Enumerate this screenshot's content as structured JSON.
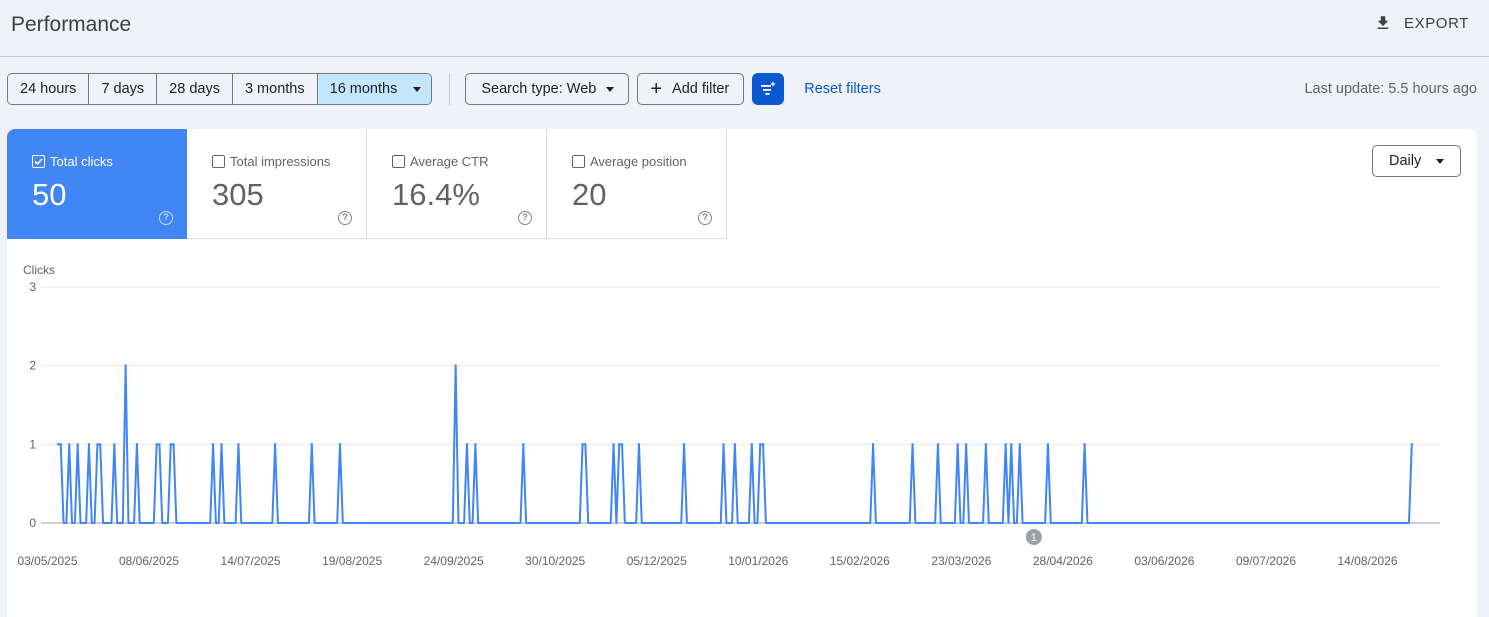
{
  "header": {
    "title": "Performance",
    "export_label": "EXPORT"
  },
  "filters": {
    "ranges": [
      "24 hours",
      "7 days",
      "28 days",
      "3 months",
      "16 months"
    ],
    "selected_range": "16 months",
    "search_type": "Search type: Web",
    "add_filter": "Add filter",
    "reset": "Reset filters",
    "last_update": "Last update: 5.5 hours ago"
  },
  "metrics": [
    {
      "label": "Total clicks",
      "value": "50",
      "checked": true
    },
    {
      "label": "Total impressions",
      "value": "305",
      "checked": false
    },
    {
      "label": "Average CTR",
      "value": "16.4%",
      "checked": false
    },
    {
      "label": "Average position",
      "value": "20",
      "checked": false
    }
  ],
  "granularity": "Daily",
  "colors": {
    "accent": "#4285f4",
    "primary": "#0b57d0",
    "selected_range_bg": "#c2e7ff"
  },
  "chart_data": {
    "type": "line",
    "ylabel": "Clicks",
    "ylim": [
      0,
      3
    ],
    "yticks": [
      0,
      1,
      2,
      3
    ],
    "xlim": [
      "2025-04-30",
      "2026-09-08"
    ],
    "xtick_labels": [
      "03/05/2025",
      "08/06/2025",
      "14/07/2025",
      "19/08/2025",
      "24/09/2025",
      "30/10/2025",
      "05/12/2025",
      "10/01/2026",
      "15/02/2026",
      "23/03/2026",
      "28/04/2026",
      "03/06/2026",
      "09/07/2026",
      "14/08/2026"
    ],
    "annotation": {
      "label": "1",
      "date": "2026-04-17"
    },
    "series": [
      {
        "color": "#4285f4",
        "baseline": 0,
        "points": [
          {
            "x": "2025-05-06",
            "y": 1
          },
          {
            "x": "2025-05-07",
            "y": 1
          },
          {
            "x": "2025-05-10",
            "y": 1
          },
          {
            "x": "2025-05-13",
            "y": 1
          },
          {
            "x": "2025-05-17",
            "y": 1
          },
          {
            "x": "2025-05-20",
            "y": 1
          },
          {
            "x": "2025-05-21",
            "y": 1
          },
          {
            "x": "2025-05-26",
            "y": 1
          },
          {
            "x": "2025-05-30",
            "y": 2
          },
          {
            "x": "2025-06-03",
            "y": 1
          },
          {
            "x": "2025-06-10",
            "y": 1
          },
          {
            "x": "2025-06-11",
            "y": 1
          },
          {
            "x": "2025-06-15",
            "y": 1
          },
          {
            "x": "2025-06-16",
            "y": 1
          },
          {
            "x": "2025-06-30",
            "y": 1
          },
          {
            "x": "2025-07-03",
            "y": 1
          },
          {
            "x": "2025-07-09",
            "y": 1
          },
          {
            "x": "2025-07-22",
            "y": 1
          },
          {
            "x": "2025-08-04",
            "y": 1
          },
          {
            "x": "2025-08-14",
            "y": 1
          },
          {
            "x": "2025-09-24",
            "y": 2
          },
          {
            "x": "2025-09-28",
            "y": 1
          },
          {
            "x": "2025-10-01",
            "y": 1
          },
          {
            "x": "2025-10-18",
            "y": 1
          },
          {
            "x": "2025-11-08",
            "y": 1
          },
          {
            "x": "2025-11-09",
            "y": 1
          },
          {
            "x": "2025-11-19",
            "y": 1
          },
          {
            "x": "2025-11-21",
            "y": 1
          },
          {
            "x": "2025-11-22",
            "y": 1
          },
          {
            "x": "2025-11-28",
            "y": 1
          },
          {
            "x": "2025-12-14",
            "y": 1
          },
          {
            "x": "2025-12-28",
            "y": 1
          },
          {
            "x": "2026-01-01",
            "y": 1
          },
          {
            "x": "2026-01-07",
            "y": 1
          },
          {
            "x": "2026-01-10",
            "y": 1
          },
          {
            "x": "2026-01-11",
            "y": 1
          },
          {
            "x": "2026-02-19",
            "y": 1
          },
          {
            "x": "2026-03-05",
            "y": 1
          },
          {
            "x": "2026-03-14",
            "y": 1
          },
          {
            "x": "2026-03-21",
            "y": 1
          },
          {
            "x": "2026-03-24",
            "y": 1
          },
          {
            "x": "2026-03-31",
            "y": 1
          },
          {
            "x": "2026-04-07",
            "y": 1
          },
          {
            "x": "2026-04-09",
            "y": 1
          },
          {
            "x": "2026-04-12",
            "y": 1
          },
          {
            "x": "2026-04-22",
            "y": 1
          },
          {
            "x": "2026-05-05",
            "y": 1
          },
          {
            "x": "2026-08-29",
            "y": 1
          }
        ]
      }
    ]
  }
}
